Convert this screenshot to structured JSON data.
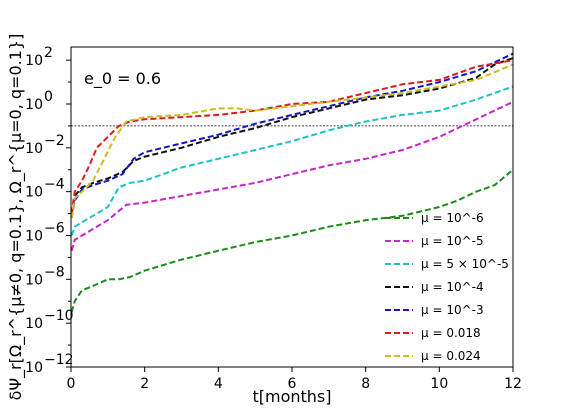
{
  "chart_data": {
    "type": "line",
    "title": "",
    "annotation": "e_0 = 0.6",
    "xlabel": "t[months]",
    "ylabel": "δΨ_r[Ω_r^{μ≠0, q=0.1}, Ω_r^{μ=0, q=0.1}]",
    "x_scale": "linear",
    "y_scale": "log",
    "xlim": [
      0,
      12
    ],
    "ylim_log10": [
      -12,
      2.6
    ],
    "x_ticks": [
      0,
      2,
      4,
      6,
      8,
      10,
      12
    ],
    "y_ticks_log10": [
      -12,
      -10,
      -8,
      -6,
      -4,
      -2,
      0,
      2
    ],
    "reference_line_log10": -1,
    "legend_position": "lower right",
    "series": [
      {
        "name": "μ = 10^-6",
        "color": "#1a8c1a",
        "x": [
          0.02,
          0.1,
          0.3,
          0.6,
          1.0,
          1.3,
          1.6,
          2.0,
          3.0,
          4.0,
          5.0,
          6.0,
          7.0,
          8.0,
          9.0,
          10.0,
          10.5,
          11.0,
          11.5,
          12.0
        ],
        "log_y": [
          -9.5,
          -9.0,
          -8.5,
          -8.3,
          -8.0,
          -8.0,
          -7.9,
          -7.6,
          -7.1,
          -6.7,
          -6.3,
          -6.0,
          -5.6,
          -5.3,
          -5.1,
          -4.7,
          -4.4,
          -4.0,
          -3.7,
          -3.0
        ]
      },
      {
        "name": "μ = 10^-5",
        "color": "#c824c8",
        "x": [
          0.02,
          0.1,
          0.3,
          0.6,
          1.0,
          1.5,
          2.0,
          3.0,
          4.0,
          5.0,
          6.0,
          7.0,
          8.0,
          9.0,
          10.0,
          11.0,
          12.0
        ],
        "log_y": [
          -6.7,
          -6.2,
          -6.0,
          -5.7,
          -5.3,
          -4.6,
          -4.5,
          -4.2,
          -3.9,
          -3.6,
          -3.2,
          -2.8,
          -2.5,
          -2.1,
          -1.5,
          -0.7,
          0.1
        ]
      },
      {
        "name": "μ = 5 × 10^-5",
        "color": "#1fc2c2",
        "x": [
          0.02,
          0.1,
          0.3,
          0.6,
          1.0,
          1.3,
          1.6,
          2.0,
          3.0,
          4.0,
          5.0,
          6.0,
          7.0,
          8.0,
          9.0,
          10.0,
          11.0,
          12.0
        ],
        "log_y": [
          -6.0,
          -5.6,
          -5.4,
          -5.1,
          -4.7,
          -3.8,
          -3.6,
          -3.5,
          -2.9,
          -2.5,
          -2.1,
          -1.7,
          -1.2,
          -0.8,
          -0.5,
          -0.3,
          0.2,
          0.8
        ]
      },
      {
        "name": "μ = 10^-4",
        "color": "#111111",
        "x": [
          0.02,
          0.1,
          0.3,
          0.6,
          1.0,
          1.4,
          1.7,
          2.0,
          3.0,
          4.0,
          5.0,
          6.0,
          7.0,
          8.0,
          9.0,
          10.0,
          11.0,
          11.5,
          12.0
        ],
        "log_y": [
          -5.0,
          -4.2,
          -3.8,
          -3.6,
          -3.4,
          -3.1,
          -2.6,
          -2.4,
          -2.0,
          -1.5,
          -1.1,
          -0.6,
          -0.2,
          0.2,
          0.4,
          0.7,
          1.2,
          1.8,
          2.1
        ]
      },
      {
        "name": "μ = 10^-3",
        "color": "#1515c8",
        "x": [
          0.02,
          0.1,
          0.3,
          0.6,
          1.0,
          1.4,
          1.7,
          2.0,
          3.0,
          4.0,
          5.0,
          6.0,
          7.0,
          8.0,
          9.0,
          10.0,
          11.0,
          11.5,
          12.0
        ],
        "log_y": [
          -5.2,
          -4.4,
          -3.9,
          -3.7,
          -3.5,
          -3.2,
          -2.5,
          -2.2,
          -1.8,
          -1.4,
          -0.9,
          -0.5,
          -0.1,
          0.3,
          0.6,
          1.0,
          1.5,
          1.9,
          2.3
        ]
      },
      {
        "name": "μ = 0.018",
        "color": "#e01a1a",
        "x": [
          0.02,
          0.1,
          0.3,
          0.5,
          0.7,
          1.0,
          1.3,
          1.6,
          2.0,
          3.0,
          4.0,
          5.0,
          6.0,
          7.0,
          8.0,
          9.0,
          10.0,
          11.0,
          12.0
        ],
        "log_y": [
          -5.0,
          -4.0,
          -3.5,
          -2.8,
          -2.0,
          -1.5,
          -1.0,
          -0.8,
          -0.7,
          -0.6,
          -0.5,
          -0.3,
          0.0,
          0.1,
          0.5,
          0.9,
          1.1,
          1.7,
          2.0
        ]
      },
      {
        "name": "μ = 0.024",
        "color": "#c8c01f",
        "x": [
          0.02,
          0.1,
          0.3,
          0.6,
          0.9,
          1.2,
          1.5,
          2.0,
          3.0,
          4.0,
          4.5,
          5.0,
          6.0,
          7.0,
          8.0,
          9.0,
          10.0,
          11.0,
          12.0
        ],
        "log_y": [
          -5.2,
          -4.3,
          -4.0,
          -3.5,
          -2.5,
          -1.5,
          -0.8,
          -0.6,
          -0.5,
          -0.2,
          -0.2,
          -0.3,
          -0.1,
          0.1,
          0.3,
          0.5,
          0.8,
          1.1,
          1.8
        ]
      }
    ]
  }
}
